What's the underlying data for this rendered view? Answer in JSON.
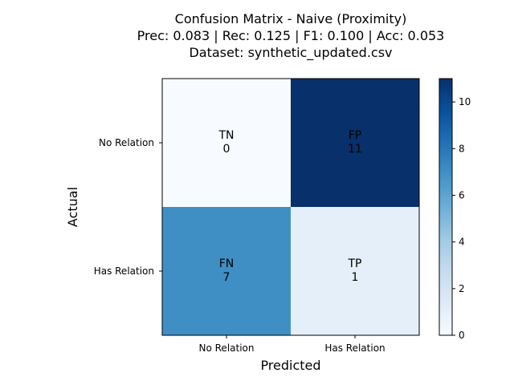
{
  "chart_data": {
    "type": "heatmap",
    "title_lines": [
      "Confusion Matrix - Naive (Proximity)",
      "Prec: 0.083 | Rec: 0.125 | F1: 0.100 | Acc: 0.053",
      "Dataset: synthetic_updated.csv"
    ],
    "xlabel": "Predicted",
    "ylabel": "Actual",
    "x_categories": [
      "No Relation",
      "Has Relation"
    ],
    "y_categories": [
      "No Relation",
      "Has Relation"
    ],
    "cells": [
      [
        {
          "label": "TN",
          "value": 0
        },
        {
          "label": "FP",
          "value": 11
        }
      ],
      [
        {
          "label": "FN",
          "value": 7
        },
        {
          "label": "TP",
          "value": 1
        }
      ]
    ],
    "colorbar": {
      "range": [
        0,
        11
      ],
      "ticks": [
        0,
        2,
        4,
        6,
        8,
        10
      ],
      "colormap": "Blues"
    }
  }
}
